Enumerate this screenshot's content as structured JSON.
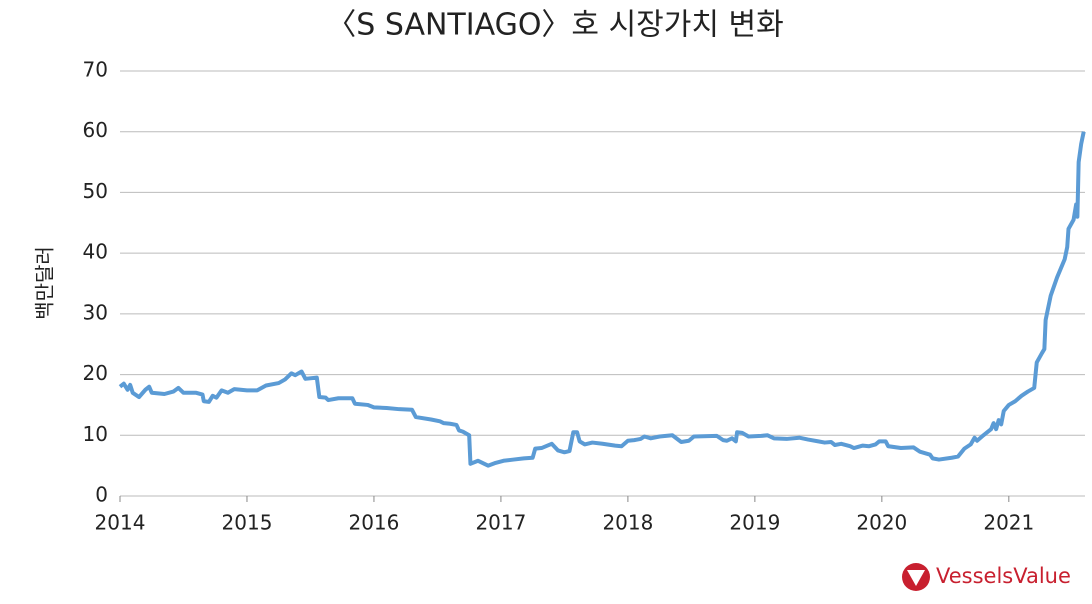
{
  "chart_data": {
    "type": "line",
    "title": "〈S SANTIAGO〉호 시장가치 변화",
    "y_label": "백만달러",
    "watermark": "VesselsValue",
    "x": [
      2014.0,
      2014.03,
      2014.06,
      2014.08,
      2014.1,
      2014.15,
      2014.2,
      2014.23,
      2014.25,
      2014.35,
      2014.42,
      2014.46,
      2014.5,
      2014.6,
      2014.65,
      2014.66,
      2014.7,
      2014.73,
      2014.76,
      2014.8,
      2014.85,
      2014.9,
      2015.0,
      2015.08,
      2015.15,
      2015.25,
      2015.3,
      2015.35,
      2015.38,
      2015.43,
      2015.46,
      2015.55,
      2015.57,
      2015.62,
      2015.64,
      2015.72,
      2015.83,
      2015.85,
      2015.95,
      2016.0,
      2016.1,
      2016.2,
      2016.3,
      2016.33,
      2016.45,
      2016.52,
      2016.55,
      2016.6,
      2016.65,
      2016.67,
      2016.7,
      2016.75,
      2016.76,
      2016.82,
      2016.9,
      2016.95,
      2017.02,
      2017.1,
      2017.18,
      2017.25,
      2017.27,
      2017.32,
      2017.4,
      2017.45,
      2017.5,
      2017.54,
      2017.57,
      2017.6,
      2017.62,
      2017.66,
      2017.72,
      2017.8,
      2017.9,
      2017.95,
      2018.0,
      2018.05,
      2018.1,
      2018.13,
      2018.18,
      2018.25,
      2018.35,
      2018.42,
      2018.48,
      2018.52,
      2018.7,
      2018.75,
      2018.78,
      2018.82,
      2018.85,
      2018.86,
      2018.9,
      2018.95,
      2019.05,
      2019.1,
      2019.15,
      2019.25,
      2019.35,
      2019.42,
      2019.5,
      2019.55,
      2019.6,
      2019.63,
      2019.68,
      2019.75,
      2019.78,
      2019.85,
      2019.9,
      2019.95,
      2019.98,
      2020.03,
      2020.05,
      2020.15,
      2020.25,
      2020.3,
      2020.38,
      2020.4,
      2020.45,
      2020.55,
      2020.6,
      2020.65,
      2020.7,
      2020.73,
      2020.75,
      2020.8,
      2020.86,
      2020.88,
      2020.9,
      2020.92,
      2020.94,
      2020.96,
      2021.0,
      2021.05,
      2021.1,
      2021.15,
      2021.2,
      2021.22,
      2021.26,
      2021.28,
      2021.29,
      2021.33,
      2021.38,
      2021.44,
      2021.46,
      2021.47,
      2021.51,
      2021.53,
      2021.54,
      2021.55,
      2021.57,
      2021.59
    ],
    "series": [
      {
        "name": "시장가치",
        "color": "#5b9bd5",
        "values": [
          18,
          18.5,
          17.5,
          18.3,
          17,
          16.3,
          17.5,
          18,
          17,
          16.8,
          17.2,
          17.8,
          17,
          17,
          16.7,
          15.6,
          15.5,
          16.5,
          16.2,
          17.4,
          17,
          17.6,
          17.4,
          17.4,
          18.2,
          18.6,
          19.2,
          20.2,
          19.9,
          20.5,
          19.3,
          19.5,
          16.3,
          16.2,
          15.8,
          16.1,
          16.1,
          15.2,
          15,
          14.6,
          14.5,
          14.3,
          14.2,
          13,
          12.6,
          12.3,
          12,
          11.9,
          11.7,
          10.8,
          10.6,
          10,
          5.3,
          5.8,
          5,
          5.4,
          5.8,
          6,
          6.2,
          6.3,
          7.8,
          7.9,
          8.6,
          7.5,
          7.2,
          7.4,
          10.5,
          10.5,
          9,
          8.5,
          8.8,
          8.6,
          8.3,
          8.2,
          9.1,
          9.2,
          9.4,
          9.8,
          9.5,
          9.8,
          10,
          8.9,
          9.1,
          9.8,
          9.9,
          9.2,
          9.1,
          9.5,
          9,
          10.5,
          10.4,
          9.8,
          9.9,
          10,
          9.5,
          9.4,
          9.6,
          9.3,
          9,
          8.8,
          8.9,
          8.4,
          8.6,
          8.2,
          7.9,
          8.3,
          8.2,
          8.5,
          9,
          9,
          8.2,
          7.9,
          8,
          7.3,
          6.8,
          6.2,
          6,
          6.3,
          6.5,
          7.8,
          8.5,
          9.6,
          9.1,
          10,
          11,
          12,
          11,
          12.5,
          11.8,
          14,
          15,
          15.6,
          16.5,
          17.2,
          17.8,
          22,
          23.5,
          24.2,
          29,
          33,
          36,
          39,
          41,
          44,
          45.5,
          48,
          46,
          55,
          58,
          60
        ]
      }
    ],
    "xlim": [
      2014,
      2021.6
    ],
    "xticks": [
      2014,
      2015,
      2016,
      2017,
      2018,
      2019,
      2020,
      2021
    ],
    "ylim": [
      0,
      70
    ],
    "yticks": [
      0,
      10,
      20,
      30,
      40,
      50,
      60,
      70
    ],
    "grid": true
  }
}
